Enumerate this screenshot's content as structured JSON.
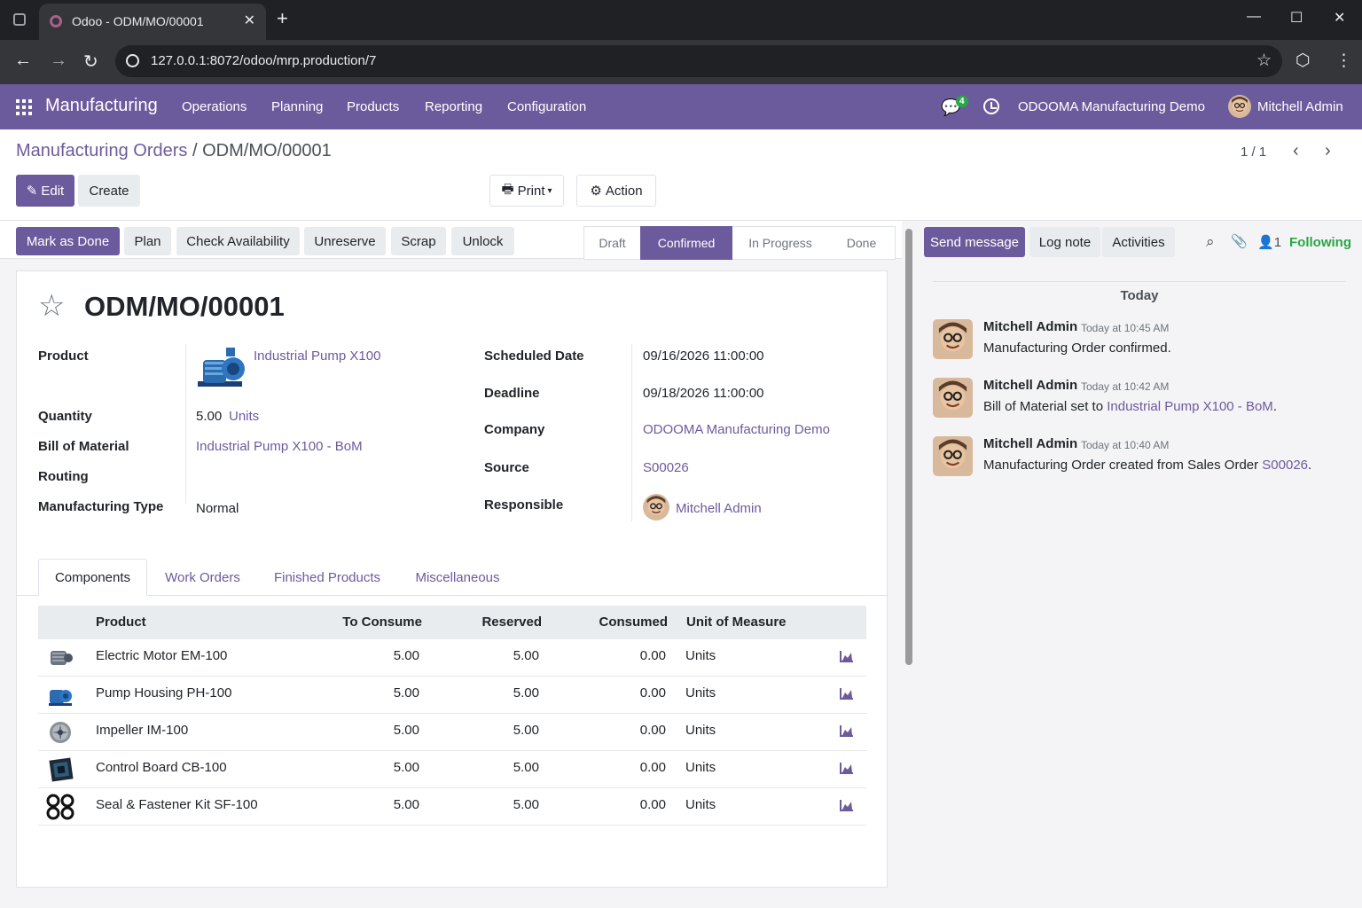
{
  "browser": {
    "tab_title": "Odoo - ODM/MO/00001",
    "url": "127.0.0.1:8072/odoo/mrp.production/7"
  },
  "navbar": {
    "app_name": "Manufacturing",
    "menus": [
      "Operations",
      "Planning",
      "Products",
      "Reporting",
      "Configuration"
    ],
    "message_count": "4",
    "company": "ODOOMA Manufacturing Demo",
    "user": "Mitchell Admin"
  },
  "control_panel": {
    "breadcrumb_parent": "Manufacturing Orders",
    "breadcrumb_sep": "/",
    "breadcrumb_current": "ODM/MO/00001",
    "pager": "1 / 1",
    "edit_label": "Edit",
    "create_label": "Create",
    "print_label": "Print",
    "action_label": "Action"
  },
  "statusbar": {
    "buttons": [
      "Mark as Done",
      "Plan",
      "Check Availability",
      "Unreserve",
      "Scrap",
      "Unlock"
    ],
    "stages": [
      "Draft",
      "Confirmed",
      "In Progress",
      "Done"
    ],
    "active_stage": "Confirmed"
  },
  "form": {
    "title": "ODM/MO/00001",
    "product_label": "Product",
    "product_value": "Industrial Pump X100",
    "quantity_label": "Quantity",
    "quantity_value": "5.00",
    "quantity_uom": "Units",
    "bom_label": "Bill of Material",
    "bom_value": "Industrial Pump X100 - BoM",
    "routing_label": "Routing",
    "routing_value": "",
    "mtype_label": "Manufacturing Type",
    "mtype_value": "Normal",
    "scheduled_label": "Scheduled Date",
    "scheduled_value": "09/16/2026 11:00:00",
    "deadline_label": "Deadline",
    "deadline_value": "09/18/2026 11:00:00",
    "company_label": "Company",
    "company_value": "ODOOMA Manufacturing Demo",
    "source_label": "Source",
    "source_value": "S00026",
    "responsible_label": "Responsible",
    "responsible_value": "Mitchell Admin"
  },
  "tabs": [
    "Components",
    "Work Orders",
    "Finished Products",
    "Miscellaneous"
  ],
  "components": {
    "headers": [
      "Product",
      "To Consume",
      "Reserved",
      "Consumed",
      "Unit of Measure"
    ],
    "rows": [
      {
        "product": "Electric Motor EM-100",
        "to_consume": "5.00",
        "reserved": "5.00",
        "consumed": "0.00",
        "uom": "Units",
        "icon": "motor-icon"
      },
      {
        "product": "Pump Housing PH-100",
        "to_consume": "5.00",
        "reserved": "5.00",
        "consumed": "0.00",
        "uom": "Units",
        "icon": "housing-icon"
      },
      {
        "product": "Impeller IM-100",
        "to_consume": "5.00",
        "reserved": "5.00",
        "consumed": "0.00",
        "uom": "Units",
        "icon": "impeller-icon"
      },
      {
        "product": "Control Board CB-100",
        "to_consume": "5.00",
        "reserved": "5.00",
        "consumed": "0.00",
        "uom": "Units",
        "icon": "board-icon"
      },
      {
        "product": "Seal & Fastener Kit SF-100",
        "to_consume": "5.00",
        "reserved": "5.00",
        "consumed": "0.00",
        "uom": "Units",
        "icon": "seals-icon"
      }
    ]
  },
  "chatter": {
    "send_message": "Send message",
    "log_note": "Log note",
    "activities": "Activities",
    "followers": "1",
    "following": "Following",
    "date_sep": "Today",
    "messages": [
      {
        "author": "Mitchell Admin",
        "time": "Today at 10:45 AM",
        "body": "Manufacturing Order confirmed.",
        "link": ""
      },
      {
        "author": "Mitchell Admin",
        "time": "Today at 10:42 AM",
        "body": "Bill of Material set to ",
        "link": "Industrial Pump X100 - BoM",
        "tail": "."
      },
      {
        "author": "Mitchell Admin",
        "time": "Today at 10:40 AM",
        "body": "Manufacturing Order created from Sales Order ",
        "link": "S00026",
        "tail": "."
      }
    ]
  },
  "colors": {
    "brand": "#6c5b9c",
    "following": "#28a745"
  }
}
